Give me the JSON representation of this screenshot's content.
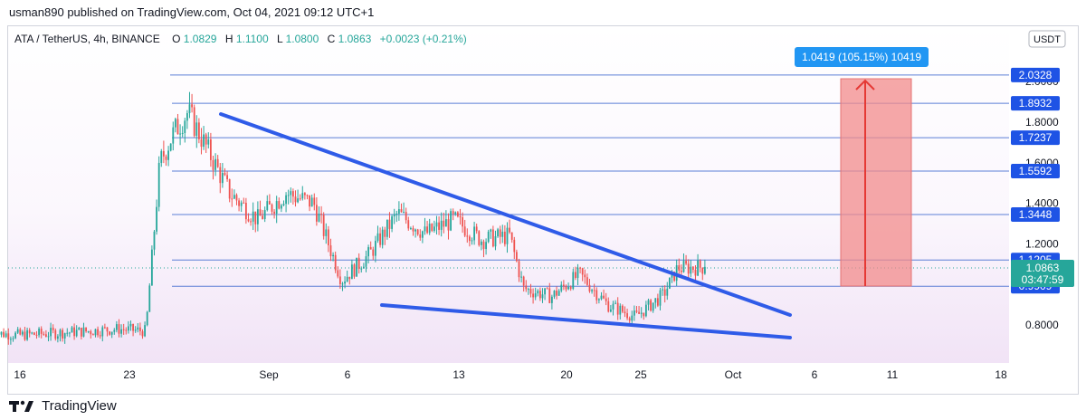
{
  "header": {
    "published_line": "usman890 published on TradingView.com, Oct 04, 2021 09:12 UTC+1"
  },
  "legend": {
    "symbol": "ATA / TetherUS, 4h, BINANCE",
    "open_label": "O",
    "open": "1.0829",
    "high_label": "H",
    "high": "1.1100",
    "low_label": "L",
    "low": "1.0800",
    "close_label": "C",
    "close": "1.0863",
    "change": "+0.0023 (+0.21%)"
  },
  "currency_badge": "USDT",
  "footer": {
    "brand": "TradingView"
  },
  "measure_label": "1.0419 (105.15%) 10419",
  "colors": {
    "up": "#26a69a",
    "down": "#ef5350",
    "wedge": "#2f5be8",
    "level": "#5b7fd6",
    "price_tag": "#26a69a",
    "level_tag": "#1e53e5",
    "measure_fill": "#f28b8b",
    "measure_arrow": "#e53935"
  },
  "chart_data": {
    "type": "candlestick",
    "title": "ATA / TetherUS, 4h, BINANCE",
    "ylim": [
      0.7,
      2.12
    ],
    "y_axis_ticks": [
      "0.8000",
      "1.2000",
      "1.4000",
      "1.6000",
      "1.8000",
      "2.0000"
    ],
    "x_axis_ticks": [
      "16",
      "23",
      "Sep",
      "6",
      "13",
      "20",
      "25",
      "Oct",
      "6",
      "11",
      "18"
    ],
    "current_price": "1.0863",
    "countdown": "03:47:59",
    "horizontal_levels": [
      "2.0328",
      "1.8932",
      "1.7237",
      "1.5592",
      "1.3448",
      "1.1205",
      "0.9909"
    ],
    "wedge": {
      "upper_line": [
        {
          "x": "Aug 28",
          "y": 1.85
        },
        {
          "x": "Oct 04",
          "y": 0.96
        }
      ],
      "lower_line": [
        {
          "x": "Sep 08",
          "y": 0.96
        },
        {
          "x": "Oct 04",
          "y": 0.74
        }
      ]
    },
    "measure": {
      "from": "0.9909",
      "to": "2.0328",
      "change": "1.0419",
      "percent": "105.15%",
      "ticks": "10419"
    },
    "candles_close_path": [
      {
        "x": "Aug 14",
        "y": 0.76
      },
      {
        "x": "Aug 16",
        "y": 0.75
      },
      {
        "x": "Aug 21",
        "y": 0.77
      },
      {
        "x": "Aug 23",
        "y": 0.78
      },
      {
        "x": "Aug 25",
        "y": 0.77
      },
      {
        "x": "Aug 26",
        "y": 1.6
      },
      {
        "x": "Aug 27",
        "y": 1.75
      },
      {
        "x": "Aug 28",
        "y": 1.85
      },
      {
        "x": "Aug 29",
        "y": 1.72
      },
      {
        "x": "Aug 31",
        "y": 1.45
      },
      {
        "x": "Sep 02",
        "y": 1.32
      },
      {
        "x": "Sep 04",
        "y": 1.45
      },
      {
        "x": "Sep 06",
        "y": 1.4
      },
      {
        "x": "Sep 08",
        "y": 1.02
      },
      {
        "x": "Sep 10",
        "y": 1.15
      },
      {
        "x": "Sep 12",
        "y": 1.35
      },
      {
        "x": "Sep 14",
        "y": 1.25
      },
      {
        "x": "Sep 16",
        "y": 1.32
      },
      {
        "x": "Sep 18",
        "y": 1.22
      },
      {
        "x": "Sep 20",
        "y": 1.24
      },
      {
        "x": "Sep 21",
        "y": 0.98
      },
      {
        "x": "Sep 23",
        "y": 0.94
      },
      {
        "x": "Sep 25",
        "y": 1.05
      },
      {
        "x": "Sep 27",
        "y": 0.9
      },
      {
        "x": "Sep 29",
        "y": 0.84
      },
      {
        "x": "Oct 01",
        "y": 0.95
      },
      {
        "x": "Oct 02",
        "y": 1.08
      },
      {
        "x": "Oct 04",
        "y": 1.0863
      }
    ]
  }
}
